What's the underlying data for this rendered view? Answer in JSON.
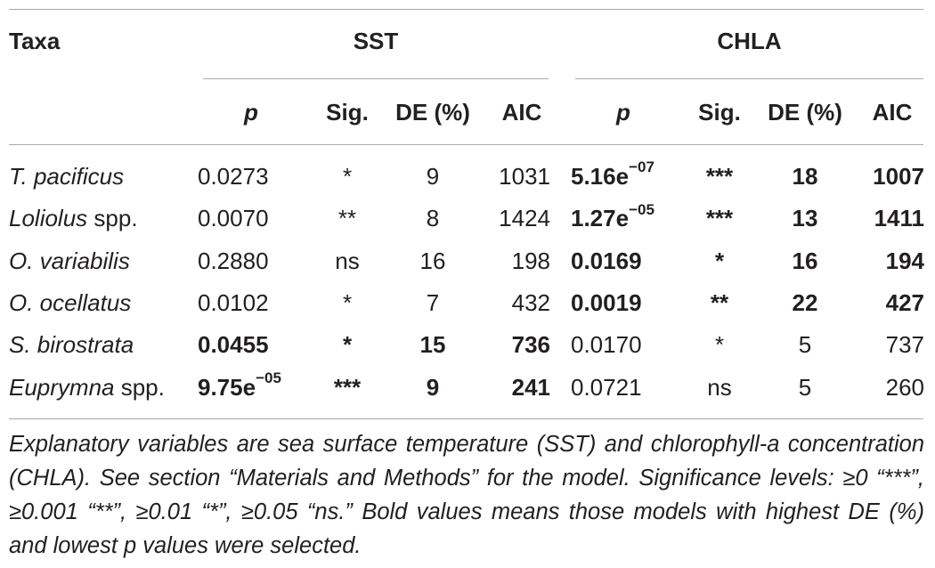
{
  "header": {
    "taxa": "Taxa",
    "sst": "SST",
    "chla": "CHLA",
    "sub": [
      "p",
      "Sig.",
      "DE (%)",
      "AIC",
      "p",
      "Sig.",
      "DE (%)",
      "AIC"
    ]
  },
  "rows": [
    {
      "taxa_italic": "T. pacificus",
      "taxa_rest": "",
      "sst_p": "0.0273",
      "sst_p_exp": "",
      "sst_sig": "*",
      "sst_de": "9",
      "sst_aic": "1031",
      "chla_p": "5.16e",
      "chla_p_exp": "−07",
      "chla_sig": "***",
      "chla_de": "18",
      "chla_aic": "1007",
      "sst_bold": false,
      "chla_bold": true
    },
    {
      "taxa_italic": "Loliolus",
      "taxa_rest": " spp.",
      "sst_p": "0.0070",
      "sst_p_exp": "",
      "sst_sig": "**",
      "sst_de": "8",
      "sst_aic": "1424",
      "chla_p": "1.27e",
      "chla_p_exp": "−05",
      "chla_sig": "***",
      "chla_de": "13",
      "chla_aic": "1411",
      "sst_bold": false,
      "chla_bold": true
    },
    {
      "taxa_italic": "O. variabilis",
      "taxa_rest": "",
      "sst_p": "0.2880",
      "sst_p_exp": "",
      "sst_sig": "ns",
      "sst_de": "16",
      "sst_aic": "198",
      "chla_p": "0.0169",
      "chla_p_exp": "",
      "chla_sig": "*",
      "chla_de": "16",
      "chla_aic": "194",
      "sst_bold": false,
      "chla_bold": true
    },
    {
      "taxa_italic": "O. ocellatus",
      "taxa_rest": "",
      "sst_p": "0.0102",
      "sst_p_exp": "",
      "sst_sig": "*",
      "sst_de": "7",
      "sst_aic": "432",
      "chla_p": "0.0019",
      "chla_p_exp": "",
      "chla_sig": "**",
      "chla_de": "22",
      "chla_aic": "427",
      "sst_bold": false,
      "chla_bold": true
    },
    {
      "taxa_italic": "S. birostrata",
      "taxa_rest": "",
      "sst_p": "0.0455",
      "sst_p_exp": "",
      "sst_sig": "*",
      "sst_de": "15",
      "sst_aic": "736",
      "chla_p": "0.0170",
      "chla_p_exp": "",
      "chla_sig": "*",
      "chla_de": "5",
      "chla_aic": "737",
      "sst_bold": true,
      "chla_bold": false
    },
    {
      "taxa_italic": "Euprymna",
      "taxa_rest": " spp.",
      "sst_p": "9.75e",
      "sst_p_exp": "−05",
      "sst_sig": "***",
      "sst_de": "9",
      "sst_aic": "241",
      "chla_p": "0.0721",
      "chla_p_exp": "",
      "chla_sig": "ns",
      "chla_de": "5",
      "chla_aic": "260",
      "sst_bold": true,
      "chla_bold": false
    }
  ],
  "footnote": "Explanatory variables are sea surface temperature (SST) and chlorophyll-a concentration (CHLA). See section “Materials and Methods” for the model. Significance levels: ≥0 “***”, ≥0.001 “**”, ≥0.01 “*”, ≥0.05 “ns.” Bold values means those models with highest DE (%) and lowest p values were selected."
}
